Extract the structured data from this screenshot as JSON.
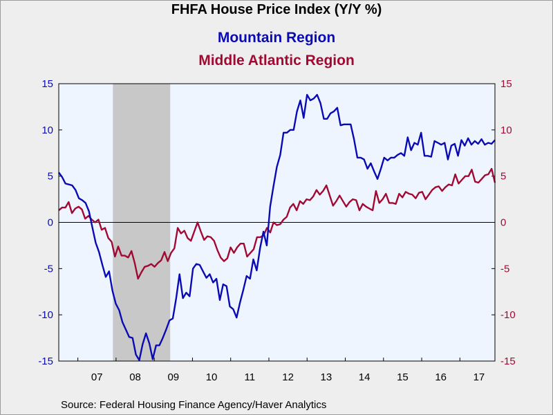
{
  "chart_data": {
    "type": "line",
    "title": "FHFA House Price Index (Y/Y %)",
    "source": "Source:  Federal Housing Finance Agency/Haver Analytics",
    "x_start_year": 2006.5,
    "x_end_year": 2017.917,
    "xticks": [
      {
        "label": "07",
        "year": 2007.0
      },
      {
        "label": "08",
        "year": 2008.0
      },
      {
        "label": "09",
        "year": 2009.0
      },
      {
        "label": "10",
        "year": 2010.0
      },
      {
        "label": "11",
        "year": 2011.0
      },
      {
        "label": "12",
        "year": 2012.0
      },
      {
        "label": "13",
        "year": 2013.0
      },
      {
        "label": "14",
        "year": 2014.0
      },
      {
        "label": "15",
        "year": 2015.0
      },
      {
        "label": "16",
        "year": 2016.0
      },
      {
        "label": "17",
        "year": 2017.0
      }
    ],
    "ylim_left": [
      -15,
      15
    ],
    "ylim_right": [
      -15,
      15
    ],
    "yticks": [
      15,
      10,
      5,
      0,
      -5,
      -10,
      -15
    ],
    "recession": {
      "start": 2007.917,
      "end": 2009.417
    },
    "series": [
      {
        "name": "Mountain Region",
        "color": "#0a0ab4",
        "axis": "left",
        "values": [
          5.4,
          4.9,
          4.2,
          4.1,
          4.0,
          3.5,
          2.6,
          2.4,
          2.1,
          1.2,
          -0.5,
          -2.2,
          -3.2,
          -4.6,
          -5.9,
          -5.3,
          -7.4,
          -8.8,
          -9.5,
          -10.8,
          -11.6,
          -12.4,
          -12.5,
          -14.3,
          -14.9,
          -13.2,
          -12.0,
          -13.1,
          -14.8,
          -13.3,
          -13.3,
          -12.5,
          -11.6,
          -10.6,
          -10.4,
          -8.2,
          -5.6,
          -8.2,
          -7.6,
          -8.0,
          -5.0,
          -4.5,
          -4.6,
          -5.3,
          -6.0,
          -5.6,
          -6.5,
          -6.1,
          -8.4,
          -6.7,
          -6.9,
          -9.1,
          -9.4,
          -10.3,
          -8.7,
          -7.3,
          -5.8,
          -6.1,
          -4.0,
          -5.2,
          -2.8,
          -1.0,
          -2.5,
          1.7,
          3.9,
          6.0,
          7.3,
          9.7,
          9.7,
          10.0,
          10.0,
          12.0,
          13.2,
          11.3,
          13.8,
          13.2,
          13.4,
          13.8,
          12.9,
          11.2,
          11.2,
          11.8,
          12.0,
          12.4,
          10.5,
          10.6,
          10.6,
          10.6,
          9.0,
          7.0,
          7.0,
          6.8,
          5.8,
          6.4,
          5.5,
          4.7,
          5.8,
          7.0,
          6.7,
          7.0,
          7.0,
          7.3,
          7.5,
          7.2,
          9.2,
          7.8,
          8.6,
          8.4,
          9.7,
          7.2,
          7.2,
          7.1,
          8.8,
          8.6,
          8.4,
          8.6,
          6.8,
          8.3,
          8.5,
          7.2,
          8.9,
          8.3,
          9.1,
          8.4,
          8.8,
          8.5,
          9.0,
          8.4,
          8.6,
          8.5,
          8.9
        ]
      },
      {
        "name": "Middle Atlantic Region",
        "color": "#a00a32",
        "axis": "right",
        "values": [
          1.3,
          1.6,
          1.6,
          2.2,
          1.0,
          1.5,
          1.7,
          1.4,
          0.4,
          0.7,
          0.3,
          0.0,
          0.3,
          -0.8,
          -0.6,
          -1.7,
          -2.1,
          -3.7,
          -2.6,
          -3.6,
          -3.6,
          -3.8,
          -3.1,
          -4.4,
          -6.1,
          -5.4,
          -4.8,
          -4.7,
          -4.5,
          -4.8,
          -4.4,
          -4.1,
          -3.2,
          -4.2,
          -3.3,
          -2.8,
          -0.6,
          -1.2,
          -0.9,
          -1.7,
          -2.0,
          -1.0,
          0.0,
          -1.0,
          -1.9,
          -1.5,
          -1.6,
          -2.0,
          -3.0,
          -3.8,
          -4.2,
          -3.9,
          -2.7,
          -3.3,
          -2.7,
          -2.3,
          -2.3,
          -3.7,
          -3.3,
          -2.9,
          -1.6,
          -1.6,
          -1.4,
          -0.6,
          -1.1,
          0.0,
          -0.3,
          -0.2,
          0.3,
          0.6,
          1.6,
          2.0,
          1.3,
          2.3,
          2.0,
          2.5,
          2.4,
          2.8,
          3.5,
          3.0,
          3.4,
          4.0,
          2.9,
          1.8,
          2.3,
          2.9,
          2.3,
          1.7,
          2.2,
          2.5,
          2.4,
          1.3,
          2.0,
          1.7,
          1.5,
          1.3,
          3.4,
          2.1,
          2.5,
          3.1,
          2.1,
          2.1,
          2.0,
          3.1,
          2.7,
          3.3,
          3.1,
          3.0,
          2.6,
          3.2,
          3.3,
          2.5,
          3.0,
          3.5,
          3.8,
          3.9,
          3.4,
          3.8,
          4.1,
          4.0,
          5.2,
          4.2,
          4.6,
          5.0,
          5.0,
          5.7,
          4.4,
          4.3,
          4.7,
          5.1,
          5.2,
          5.8,
          4.3
        ]
      }
    ],
    "grid": false,
    "zero_line": true
  },
  "colors": {
    "plot_bg": "#eef5fe",
    "page_bg": "#eeeeee",
    "recession": "#c8c8c8",
    "left_axis": "#0a0ab4",
    "right_axis": "#a00a32"
  }
}
